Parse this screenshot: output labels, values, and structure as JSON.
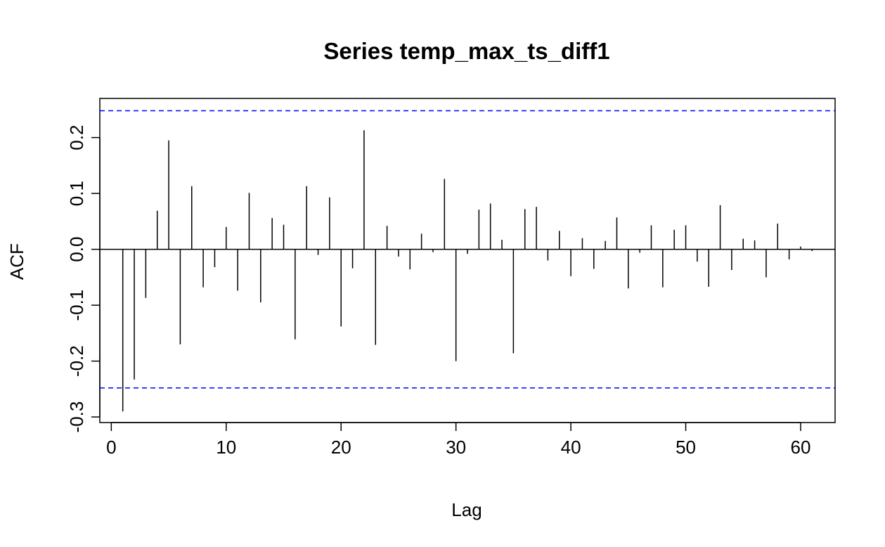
{
  "chart_data": {
    "type": "bar",
    "title": "Series temp_max_ts_diff1",
    "xlabel": "Lag",
    "ylabel": "ACF",
    "xlim": [
      -1,
      63
    ],
    "ylim": [
      -0.31,
      0.27
    ],
    "x_ticks": [
      0,
      10,
      20,
      30,
      40,
      50,
      60
    ],
    "x_tick_labels": [
      "0",
      "10",
      "20",
      "30",
      "40",
      "50",
      "60"
    ],
    "y_ticks": [
      -0.3,
      -0.2,
      -0.1,
      0.0,
      0.1,
      0.2
    ],
    "y_tick_labels": [
      "-0.3",
      "-0.2",
      "-0.1",
      "0.0",
      "0.1",
      "0.2"
    ],
    "confidence_bound": 0.248,
    "zero_line_color": "#000000",
    "bound_color": "#0000ff",
    "bar_color": "#000000",
    "grid": false,
    "lags": [
      1,
      2,
      3,
      4,
      5,
      6,
      7,
      8,
      9,
      10,
      11,
      12,
      13,
      14,
      15,
      16,
      17,
      18,
      19,
      20,
      21,
      22,
      23,
      24,
      25,
      26,
      27,
      28,
      29,
      30,
      31,
      32,
      33,
      34,
      35,
      36,
      37,
      38,
      39,
      40,
      41,
      42,
      43,
      44,
      45,
      46,
      47,
      48,
      49,
      50,
      51,
      52,
      53,
      54,
      55,
      56,
      57,
      58,
      59,
      60,
      61
    ],
    "values": [
      -0.29,
      -0.233,
      -0.087,
      0.069,
      0.195,
      -0.17,
      0.113,
      -0.068,
      -0.032,
      0.04,
      -0.074,
      0.101,
      -0.095,
      0.056,
      0.044,
      -0.161,
      0.113,
      -0.01,
      0.093,
      -0.138,
      -0.034,
      0.213,
      -0.171,
      0.042,
      -0.013,
      -0.036,
      0.028,
      -0.005,
      0.126,
      -0.2,
      -0.008,
      0.071,
      0.082,
      0.017,
      -0.186,
      0.072,
      0.076,
      -0.02,
      0.033,
      -0.048,
      0.02,
      -0.035,
      0.015,
      0.057,
      -0.07,
      -0.006,
      0.043,
      -0.068,
      0.035,
      0.043,
      -0.022,
      -0.067,
      0.079,
      -0.037,
      0.019,
      0.016,
      -0.05,
      0.046,
      -0.018,
      0.005,
      -0.003
    ]
  }
}
